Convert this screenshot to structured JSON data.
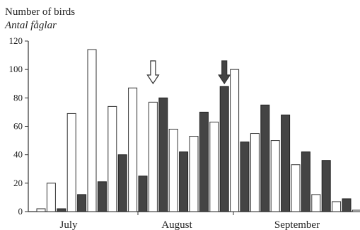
{
  "chart_data": {
    "type": "bar",
    "ylabel": "Number of birds",
    "ylabel_secondary": "Antal fåglar",
    "xlabel": "",
    "ylim": [
      0,
      120
    ],
    "yticks": [
      0,
      20,
      40,
      60,
      80,
      100,
      120
    ],
    "month_labels": [
      "July",
      "August",
      "September"
    ],
    "series": [
      {
        "name": "",
        "fill": "#ffffff",
        "stroke": "#333333",
        "values": [
          2,
          20,
          69,
          114,
          74,
          87,
          77,
          58,
          53,
          63,
          100,
          55,
          50,
          33,
          12,
          7,
          1
        ]
      },
      {
        "name": "",
        "fill": "#444444",
        "stroke": "#222222",
        "values": [
          2,
          12,
          21,
          40,
          25,
          80,
          42,
          70,
          88,
          49,
          75,
          68,
          42,
          36,
          9
        ]
      }
    ],
    "bar_sequence": [
      {
        "series": 0,
        "index": 0
      },
      {
        "series": 0,
        "index": 1
      },
      {
        "series": 1,
        "index": 0
      },
      {
        "series": 0,
        "index": 2
      },
      {
        "series": 1,
        "index": 1
      },
      {
        "series": 0,
        "index": 3
      },
      {
        "series": 1,
        "index": 2
      },
      {
        "series": 0,
        "index": 4
      },
      {
        "series": 1,
        "index": 3
      },
      {
        "series": 0,
        "index": 5
      },
      {
        "series": 1,
        "index": 4
      },
      {
        "series": 0,
        "index": 6
      },
      {
        "series": 1,
        "index": 5
      },
      {
        "series": 0,
        "index": 7
      },
      {
        "series": 1,
        "index": 6
      },
      {
        "series": 0,
        "index": 8
      },
      {
        "series": 1,
        "index": 7
      },
      {
        "series": 0,
        "index": 9
      },
      {
        "series": 1,
        "index": 8
      },
      {
        "series": 0,
        "index": 10
      },
      {
        "series": 1,
        "index": 9
      },
      {
        "series": 0,
        "index": 11
      },
      {
        "series": 1,
        "index": 10
      },
      {
        "series": 0,
        "index": 12
      },
      {
        "series": 1,
        "index": 11
      },
      {
        "series": 0,
        "index": 13
      },
      {
        "series": 1,
        "index": 12
      },
      {
        "series": 0,
        "index": 14
      },
      {
        "series": 1,
        "index": 13
      },
      {
        "series": 0,
        "index": 15
      },
      {
        "series": 1,
        "index": 14
      },
      {
        "series": 0,
        "index": 16
      }
    ],
    "annotations": [
      {
        "type": "arrow",
        "style": "hollow",
        "direction": "down",
        "near_bar": 11
      },
      {
        "type": "arrow",
        "style": "filled",
        "direction": "down",
        "near_bar": 18
      }
    ],
    "grid": false,
    "legend": "none"
  }
}
